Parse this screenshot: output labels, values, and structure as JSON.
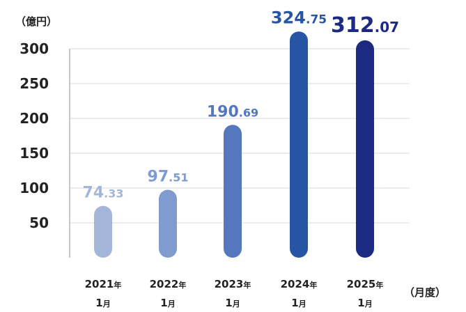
{
  "chart_data": {
    "type": "bar",
    "y_unit_label": "（億円）",
    "x_unit_label": "（月度）",
    "categories": [
      {
        "year": "2021",
        "year_suffix": "年",
        "month": "1",
        "month_suffix": "月"
      },
      {
        "year": "2022",
        "year_suffix": "年",
        "month": "1",
        "month_suffix": "月"
      },
      {
        "year": "2023",
        "year_suffix": "年",
        "month": "1",
        "month_suffix": "月"
      },
      {
        "year": "2024",
        "year_suffix": "年",
        "month": "1",
        "month_suffix": "月"
      },
      {
        "year": "2025",
        "year_suffix": "年",
        "month": "1",
        "month_suffix": "月"
      }
    ],
    "values": [
      74.33,
      97.51,
      190.69,
      324.75,
      312.07
    ],
    "value_labels": [
      {
        "int": "74",
        "dec": ".33"
      },
      {
        "int": "97",
        "dec": ".51"
      },
      {
        "int": "190",
        "dec": ".69"
      },
      {
        "int": "324",
        "dec": ".75"
      },
      {
        "int": "312",
        "dec": ".07"
      }
    ],
    "bar_colors": [
      "#a3b6da",
      "#7f9bcf",
      "#5577bd",
      "#2655a6",
      "#1c2a82"
    ],
    "yticks": [
      50,
      100,
      150,
      200,
      250,
      300
    ],
    "ylim": [
      0,
      325
    ],
    "grid": true,
    "gridline_color": "#d9d9d9"
  }
}
